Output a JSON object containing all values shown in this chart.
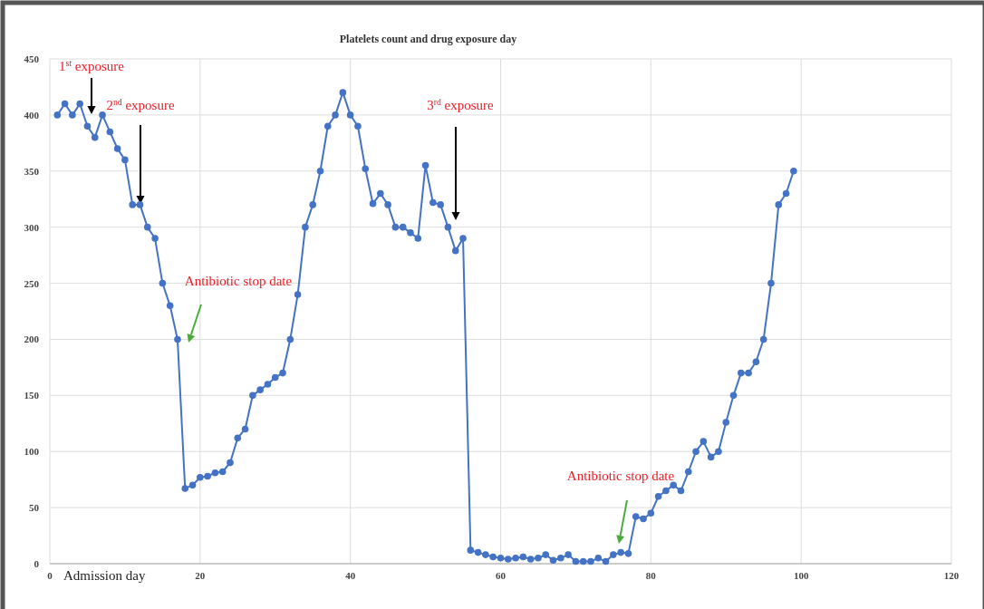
{
  "chart_data": {
    "type": "line",
    "title": "Platelets count and drug exposure day",
    "xlabel": "Admission day",
    "x": [
      1,
      2,
      3,
      4,
      5,
      6,
      7,
      8,
      9,
      10,
      11,
      12,
      13,
      14,
      15,
      16,
      17,
      18,
      19,
      20,
      21,
      22,
      23,
      24,
      25,
      26,
      27,
      28,
      29,
      30,
      31,
      32,
      33,
      34,
      35,
      36,
      37,
      38,
      39,
      40,
      41,
      42,
      43,
      44,
      45,
      46,
      47,
      48,
      49,
      50,
      51,
      52,
      53,
      54,
      55,
      56,
      57,
      58,
      59,
      60,
      61,
      62,
      63,
      64,
      65,
      66,
      67,
      68,
      69,
      70,
      71,
      72,
      73,
      74,
      75,
      76,
      77,
      78,
      79,
      80,
      81,
      82,
      83,
      84,
      85,
      86,
      87,
      88,
      89,
      90,
      91,
      92,
      93,
      94,
      95,
      96,
      97,
      98,
      99
    ],
    "series": [
      {
        "color": "#4472c4",
        "values": [
          400,
          410,
          400,
          410,
          390,
          380,
          400,
          385,
          370,
          360,
          320,
          320,
          300,
          290,
          250,
          230,
          200,
          67,
          70,
          77,
          78,
          81,
          82,
          90,
          112,
          120,
          150,
          155,
          160,
          166,
          170,
          200,
          240,
          300,
          320,
          350,
          390,
          400,
          420,
          400,
          390,
          352,
          321,
          330,
          320,
          300,
          300,
          295,
          290,
          355,
          322,
          320,
          300,
          279,
          290,
          12,
          10,
          8,
          6,
          5,
          4,
          5,
          6,
          4,
          5,
          8,
          3,
          5,
          8,
          2,
          2,
          2,
          5,
          2,
          8,
          10,
          9,
          42,
          40,
          45,
          60,
          65,
          70,
          65,
          82,
          100,
          109,
          95,
          100,
          126,
          150,
          170,
          170,
          180,
          200,
          250,
          320,
          330,
          350
        ]
      }
    ],
    "xlim": [
      0,
      120
    ],
    "xticks": [
      0,
      20,
      40,
      60,
      80,
      100,
      120
    ],
    "ylim": [
      0,
      450
    ],
    "yticks": [
      0,
      50,
      100,
      150,
      200,
      250,
      300,
      350,
      400,
      450
    ],
    "grid": true,
    "marker": "circle",
    "line_style": "solid",
    "annotations": [
      "1$^{st}$ exposure",
      "2$^{nd}$ exposure",
      "Antibiotic stop date",
      "3$^{rd}$ exposure",
      "Antibiotic stop date"
    ]
  }
}
